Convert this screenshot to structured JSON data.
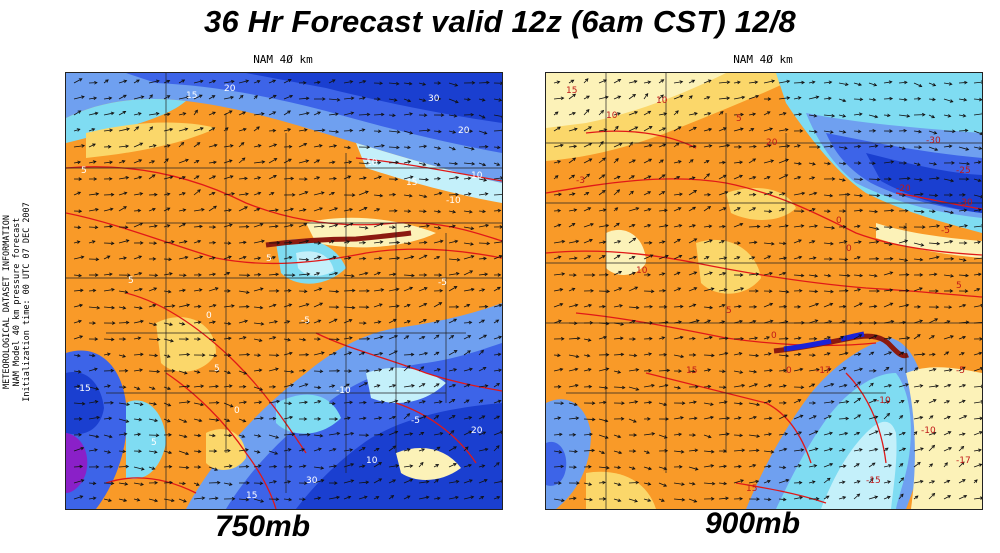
{
  "title": "36 Hr Forecast valid 12z (6am CST) 12/8",
  "side_info": {
    "line1": "METEOROLOGICAL DATASET INFORMATION",
    "line2": "NAM Model  40 km  pressure forecast",
    "line3": "Initialization time: 00 UTC 07 DEC 2007"
  },
  "panels": [
    {
      "model_label": "NAM 4Ø km",
      "level_label": "750mb",
      "contour_labels": [
        "15",
        "20",
        "30",
        "20",
        "10",
        "-10",
        "15",
        "10",
        "5",
        "5",
        "0",
        "5",
        "-5",
        "-10",
        "-5",
        "-15",
        "5",
        "0",
        "5",
        "-5",
        "10",
        "30",
        "20",
        "15"
      ]
    },
    {
      "model_label": "NAM 4Ø km",
      "level_label": "900mb",
      "contour_labels": [
        "15",
        "10",
        "10",
        "5",
        "20",
        "-30",
        "-25",
        "-30",
        "-20",
        "0",
        "-5",
        "0",
        "5",
        "-3",
        "10",
        "5",
        "0",
        "15",
        "0",
        "-17",
        "15",
        "-10",
        "-5",
        "-10",
        "-15",
        "-17"
      ]
    }
  ],
  "colors": {
    "deep_blue": "#1a3fd0",
    "mid_blue": "#3d64e8",
    "light_blue": "#6fa0f0",
    "cyan": "#7fdcf2",
    "pale_cyan": "#c4f0fa",
    "pale_yellow": "#fcf2b8",
    "yellow": "#fbd76a",
    "light_orange": "#f9b24c",
    "orange": "#f99a28",
    "magenta": "#8a20c8",
    "isotherm_red": "#e01818",
    "front_brown": "#8b1a10",
    "front_blue": "#1a22d8"
  },
  "icons": [
    "wind-vector-arrows",
    "state-boundaries"
  ]
}
